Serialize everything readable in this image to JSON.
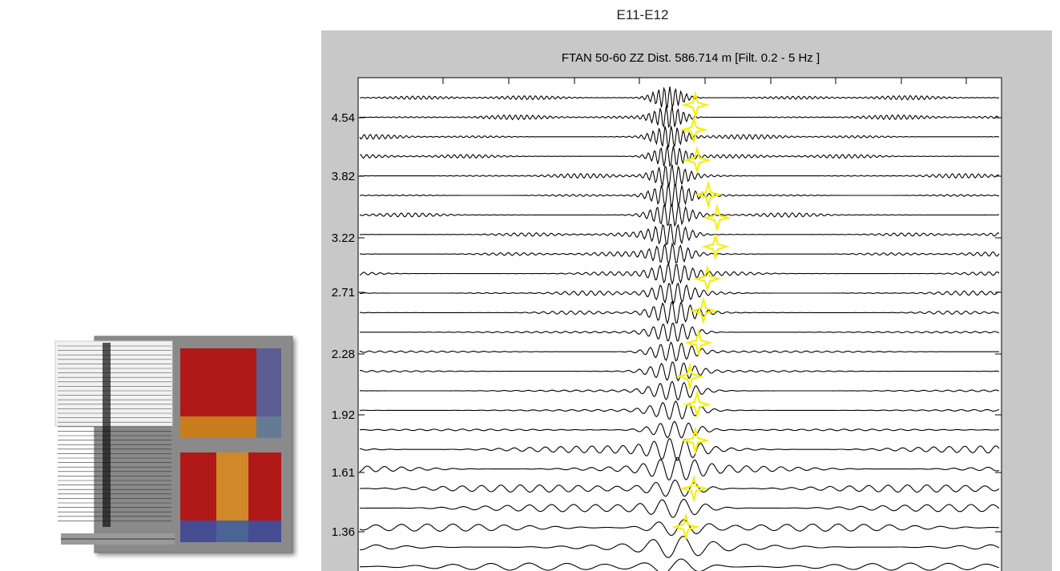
{
  "header": {
    "title": "E11-E12"
  },
  "plot": {
    "title": "FTAN 50-60 ZZ  Dist. 586.714 m    [Filt. 0.2 - 5 Hz ]",
    "ytick_labels": [
      "4.54",
      "3.82",
      "3.22",
      "2.71",
      "2.28",
      "1.92",
      "1.61",
      "1.36"
    ]
  }
}
